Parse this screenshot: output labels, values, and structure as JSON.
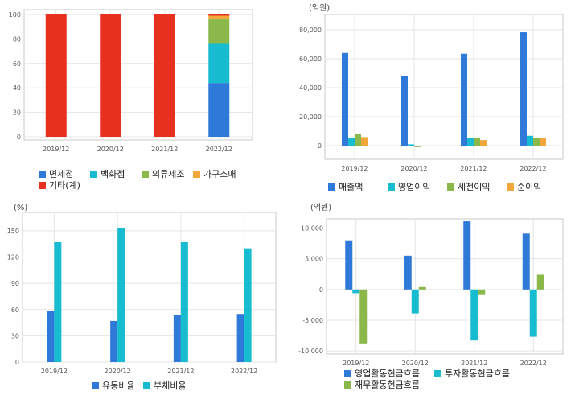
{
  "colors": {
    "blue": "#2f7ad8",
    "teal": "#17bcd0",
    "green": "#8ab84a",
    "orange": "#f2a73b",
    "red": "#e8301e",
    "grid": "#e4e4e4",
    "frame": "#c8c8c8"
  },
  "chart_data": [
    {
      "id": "composition",
      "type": "bar",
      "stacked": true,
      "unit": "",
      "categories": [
        "2019/12",
        "2020/12",
        "2021/12",
        "2022/12"
      ],
      "yticks": [
        0,
        20,
        40,
        60,
        80,
        100
      ],
      "ylim": [
        0,
        100
      ],
      "series": [
        {
          "name": "면세점",
          "color": "#2f7ad8",
          "values": [
            0,
            0,
            0,
            44
          ]
        },
        {
          "name": "백화점",
          "color": "#17bcd0",
          "values": [
            0,
            0,
            0,
            32
          ]
        },
        {
          "name": "의류제조",
          "color": "#8ab84a",
          "values": [
            0,
            0,
            0,
            20
          ]
        },
        {
          "name": "가구소매",
          "color": "#f2a73b",
          "values": [
            0,
            0,
            0,
            3
          ]
        },
        {
          "name": "기타(계)",
          "color": "#e8301e",
          "values": [
            100,
            100,
            100,
            1
          ]
        }
      ],
      "legend_rows": [
        [
          0,
          1,
          2,
          3
        ],
        [
          4
        ]
      ],
      "grid": true
    },
    {
      "id": "income",
      "type": "bar",
      "unit": "(억원)",
      "categories": [
        "2019/12",
        "2020/12",
        "2021/12",
        "2022/12"
      ],
      "yticks": [
        0,
        20000,
        40000,
        60000,
        80000
      ],
      "ytick_labels": [
        "0",
        "20,000",
        "40,000",
        "60,000",
        "80,000"
      ],
      "ylim": [
        -5000,
        85000
      ],
      "series": [
        {
          "name": "매출액",
          "color": "#2f7ad8",
          "values": [
            64000,
            47800,
            63500,
            78300
          ]
        },
        {
          "name": "영업이익",
          "color": "#17bcd0",
          "values": [
            5100,
            900,
            5300,
            6800
          ]
        },
        {
          "name": "세전이익",
          "color": "#8ab84a",
          "values": [
            8200,
            -1000,
            5600,
            5600
          ]
        },
        {
          "name": "순이익",
          "color": "#f2a73b",
          "values": [
            5900,
            -500,
            3800,
            5300
          ]
        }
      ],
      "legend_rows": [
        [
          0,
          1,
          2,
          3
        ]
      ],
      "grid": true
    },
    {
      "id": "ratios",
      "type": "bar",
      "unit": "(%)",
      "categories": [
        "2019/12",
        "2020/12",
        "2021/12",
        "2022/12"
      ],
      "yticks": [
        0,
        30,
        60,
        90,
        120,
        150
      ],
      "ylim": [
        0,
        160
      ],
      "series": [
        {
          "name": "유동비율",
          "color": "#2f7ad8",
          "values": [
            58,
            47,
            54,
            55
          ]
        },
        {
          "name": "부채비율",
          "color": "#17bcd0",
          "values": [
            137,
            153,
            137,
            130
          ]
        }
      ],
      "legend_rows": [
        [
          0,
          1
        ]
      ],
      "grid": true
    },
    {
      "id": "cashflow",
      "type": "bar",
      "unit": "(억원)",
      "categories": [
        "2019/12",
        "2020/12",
        "2021/12",
        "2022/12"
      ],
      "yticks": [
        -10000,
        -5000,
        0,
        5000,
        10000
      ],
      "ytick_labels": [
        "-10,000",
        "-5,000",
        "0",
        "5,000",
        "10,000"
      ],
      "ylim": [
        -10500,
        11500
      ],
      "series": [
        {
          "name": "영업활동현금흐름",
          "color": "#2f7ad8",
          "values": [
            8000,
            5500,
            11100,
            9100
          ]
        },
        {
          "name": "투자활동현금흐름",
          "color": "#17bcd0",
          "values": [
            -600,
            -3900,
            -8300,
            -7700
          ]
        },
        {
          "name": "재무활동현금흐름",
          "color": "#8ab84a",
          "values": [
            -8900,
            400,
            -900,
            2400
          ]
        }
      ],
      "legend_rows": [
        [
          0,
          1
        ],
        [
          2
        ]
      ],
      "grid": true
    }
  ]
}
